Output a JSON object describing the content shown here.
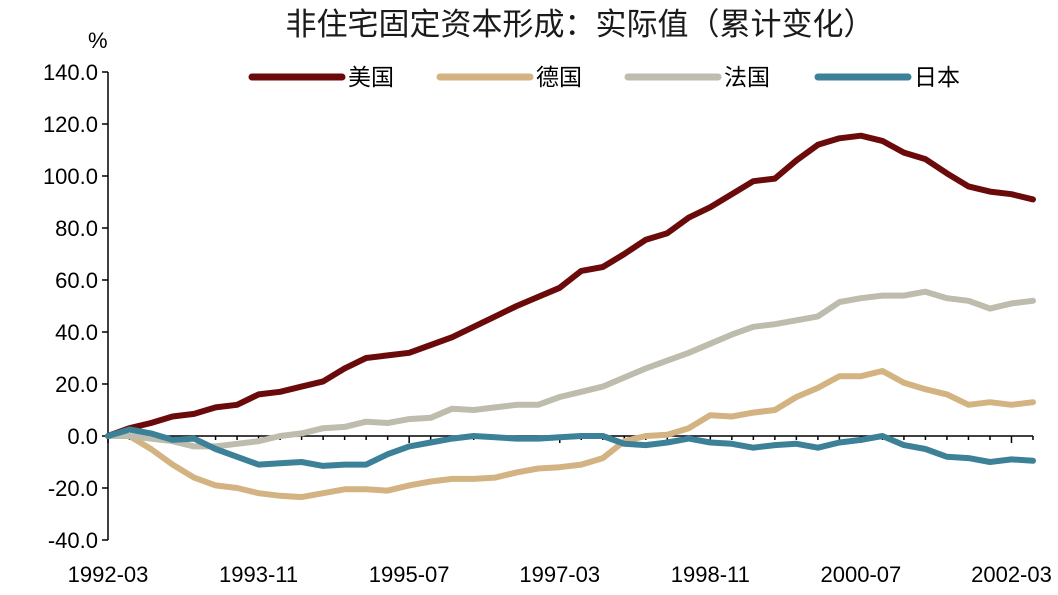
{
  "chart_data": {
    "type": "line",
    "title": "非住宅固定资本形成：实际值（累计变化）",
    "ylabel": "%",
    "ylim": [
      -40,
      140
    ],
    "yticks": [
      -40,
      -20,
      0,
      20,
      40,
      60,
      80,
      100,
      120,
      140
    ],
    "ytick_labels": [
      "-40.0",
      "-20.0",
      "0.0",
      "20.0",
      "40.0",
      "60.0",
      "80.0",
      "100.0",
      "120.0",
      "140.0"
    ],
    "x_start": "1992-03",
    "x_step_quarters": 1,
    "xtick_labels": [
      "1992-03",
      "1993-11",
      "1995-07",
      "1997-03",
      "1998-11",
      "2000-07",
      "2002-03"
    ],
    "xtick_index": [
      0,
      7,
      14,
      21,
      28,
      35,
      42
    ],
    "legend_position": "top",
    "grid": false,
    "series": [
      {
        "name": "美国",
        "color": "#6b0a0a",
        "values": [
          0,
          3,
          5,
          7.5,
          8.5,
          11,
          12,
          16,
          17,
          19,
          21,
          26,
          30,
          31,
          32,
          35,
          38,
          42,
          46,
          50,
          53.5,
          57,
          63.5,
          65,
          70,
          75.5,
          78,
          84,
          88,
          93,
          98,
          99,
          106,
          112,
          114.5,
          115.5,
          113.5,
          109,
          106.5,
          101,
          96,
          94,
          93,
          91
        ]
      },
      {
        "name": "德国",
        "color": "#d4b383",
        "values": [
          0,
          0,
          -5,
          -11,
          -16,
          -19,
          -20,
          -22,
          -23,
          -23.5,
          -22,
          -20.5,
          -20.5,
          -21,
          -19,
          -17.5,
          -16.5,
          -16.5,
          -16,
          -14,
          -12.5,
          -12,
          -11,
          -8.5,
          -2,
          0,
          0.5,
          3,
          8,
          7.5,
          9,
          10,
          15,
          18.5,
          23,
          23,
          25,
          20.5,
          18,
          16,
          12,
          13,
          12,
          13
        ]
      },
      {
        "name": "法国",
        "color": "#bdbcad",
        "values": [
          0,
          0,
          -1,
          -2,
          -4,
          -4,
          -3,
          -2,
          0,
          1,
          3,
          3.5,
          5.5,
          5,
          6.5,
          7,
          10.5,
          10,
          11,
          12,
          12,
          15,
          17,
          19,
          22.5,
          26,
          29,
          32,
          35.5,
          39,
          42,
          43,
          44.5,
          46,
          51.5,
          53,
          54,
          54,
          55.5,
          53,
          52,
          49,
          51,
          52
        ]
      },
      {
        "name": "日本",
        "color": "#3c8197",
        "values": [
          0,
          2.5,
          1,
          -1.5,
          -1,
          -5,
          -8,
          -11,
          -10.5,
          -10,
          -11.5,
          -11,
          -11,
          -7,
          -4,
          -2.5,
          -1,
          0,
          -0.5,
          -1,
          -1,
          -0.5,
          0,
          0,
          -3,
          -3.5,
          -2.5,
          -1,
          -2.5,
          -3,
          -4.5,
          -3.5,
          -3,
          -4.5,
          -2.5,
          -1.5,
          0,
          -3.5,
          -5,
          -8,
          -8.5,
          -10,
          -9,
          -9.5
        ]
      }
    ]
  }
}
